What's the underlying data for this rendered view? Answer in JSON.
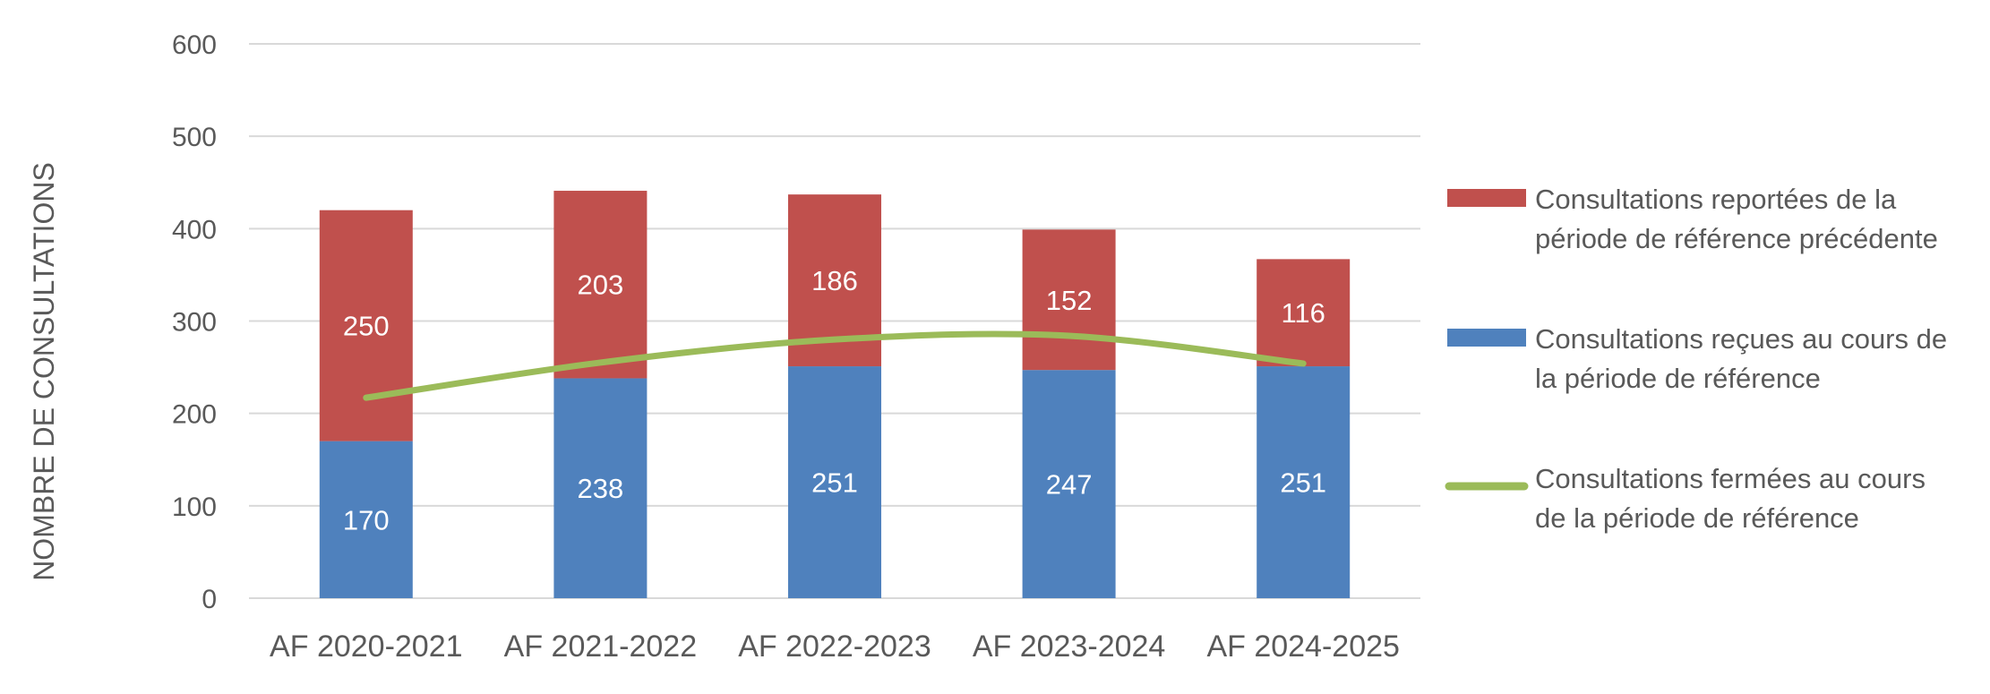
{
  "chart_data": {
    "type": "bar",
    "stacked": true,
    "categories": [
      "AF 2020-2021",
      "AF 2021-2022",
      "AF 2022-2023",
      "AF 2023-2024",
      "AF 2024-2025"
    ],
    "series": [
      {
        "name": "Consultations reçues au cours de la période de référence",
        "legend_lines": [
          "Consultations reçues au cours de",
          "la période de référence"
        ],
        "type": "bar",
        "color": "#4F81BD",
        "values": [
          170,
          238,
          251,
          247,
          251
        ]
      },
      {
        "name": "Consultations reportées de la période de référence précédente",
        "legend_lines": [
          "Consultations reportées de la",
          "période de référence précédente"
        ],
        "type": "bar",
        "color": "#C0504D",
        "values": [
          250,
          203,
          186,
          152,
          116
        ]
      },
      {
        "name": "Consultations fermées au cours de la période de référence",
        "legend_lines": [
          "Consultations fermées au cours",
          "de la période de référence"
        ],
        "type": "line",
        "color": "#9BBB59",
        "values": [
          217,
          255,
          280,
          284,
          254
        ]
      }
    ],
    "legend_order": [
      1,
      0,
      2
    ],
    "ylabel": "NOMBRE DE CONSULTATIONS",
    "xlabel": "",
    "ylim": [
      0,
      600
    ],
    "yticks": [
      0,
      100,
      200,
      300,
      400,
      500,
      600
    ],
    "grid": true,
    "legend_position": "right"
  }
}
